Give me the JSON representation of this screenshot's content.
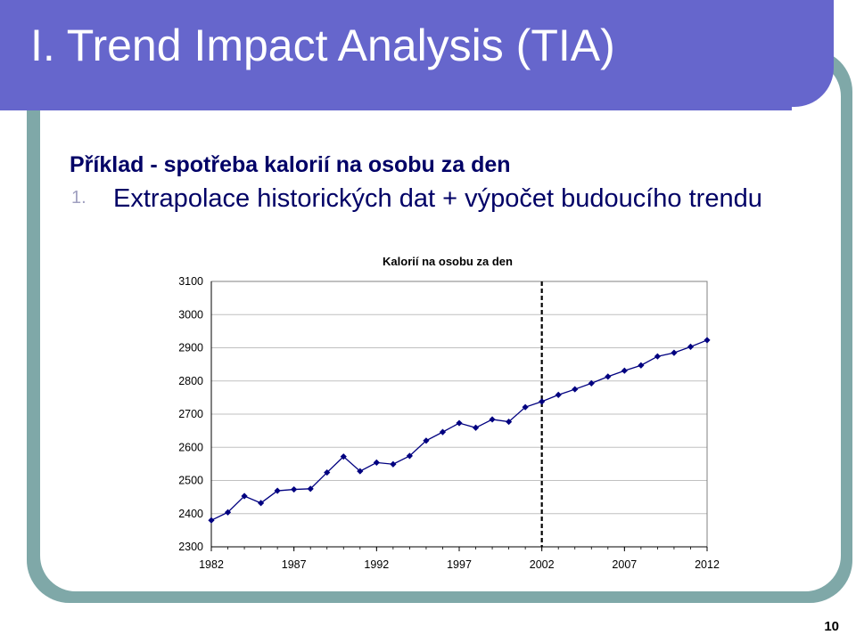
{
  "slide": {
    "title": "I. Trend Impact Analysis (TIA)",
    "heading": "Příklad - spotřeba kalorií na osobu za den",
    "list_item_number": "1.",
    "list_item_text": "Extrapolace historických dat + výpočet budoucího trendu",
    "page_number": "10"
  },
  "colors": {
    "title_bar": "#6666cc",
    "frame": "#7fa8a8",
    "heading_text": "#000066",
    "series_line": "#000080"
  },
  "chart_data": {
    "type": "line",
    "title": "Kalorií na osobu za den",
    "xlabel": "",
    "ylabel": "",
    "x_ticks": [
      "1982",
      "1987",
      "1992",
      "1997",
      "2002",
      "2007",
      "2012"
    ],
    "y_ticks": [
      "3100",
      "3000",
      "2900",
      "2800",
      "2700",
      "2600",
      "2500",
      "2400",
      "2300"
    ],
    "xlim": [
      1982,
      2012
    ],
    "ylim": [
      2300,
      3100
    ],
    "grid": "horizontal",
    "legend": "none",
    "marker": "diamond",
    "vertical_reference_line": {
      "x": 2002,
      "style": "dashed"
    },
    "series": [
      {
        "x": [
          1982,
          1983,
          1984,
          1985,
          1986,
          1987,
          1988,
          1989,
          1990,
          1991,
          1992,
          1993,
          1994,
          1995,
          1996,
          1997,
          1998,
          1999,
          2000,
          2001,
          2002,
          2003,
          2004,
          2005,
          2006,
          2007,
          2008,
          2009,
          2010,
          2011,
          2012
        ],
        "values": [
          2380,
          2404,
          2453,
          2432,
          2469,
          2473,
          2475,
          2524,
          2572,
          2528,
          2554,
          2549,
          2574,
          2620,
          2646,
          2673,
          2659,
          2684,
          2677,
          2721,
          2738,
          2758,
          2775,
          2793,
          2813,
          2831,
          2847,
          2874,
          2885,
          2903,
          2923
        ]
      }
    ]
  }
}
